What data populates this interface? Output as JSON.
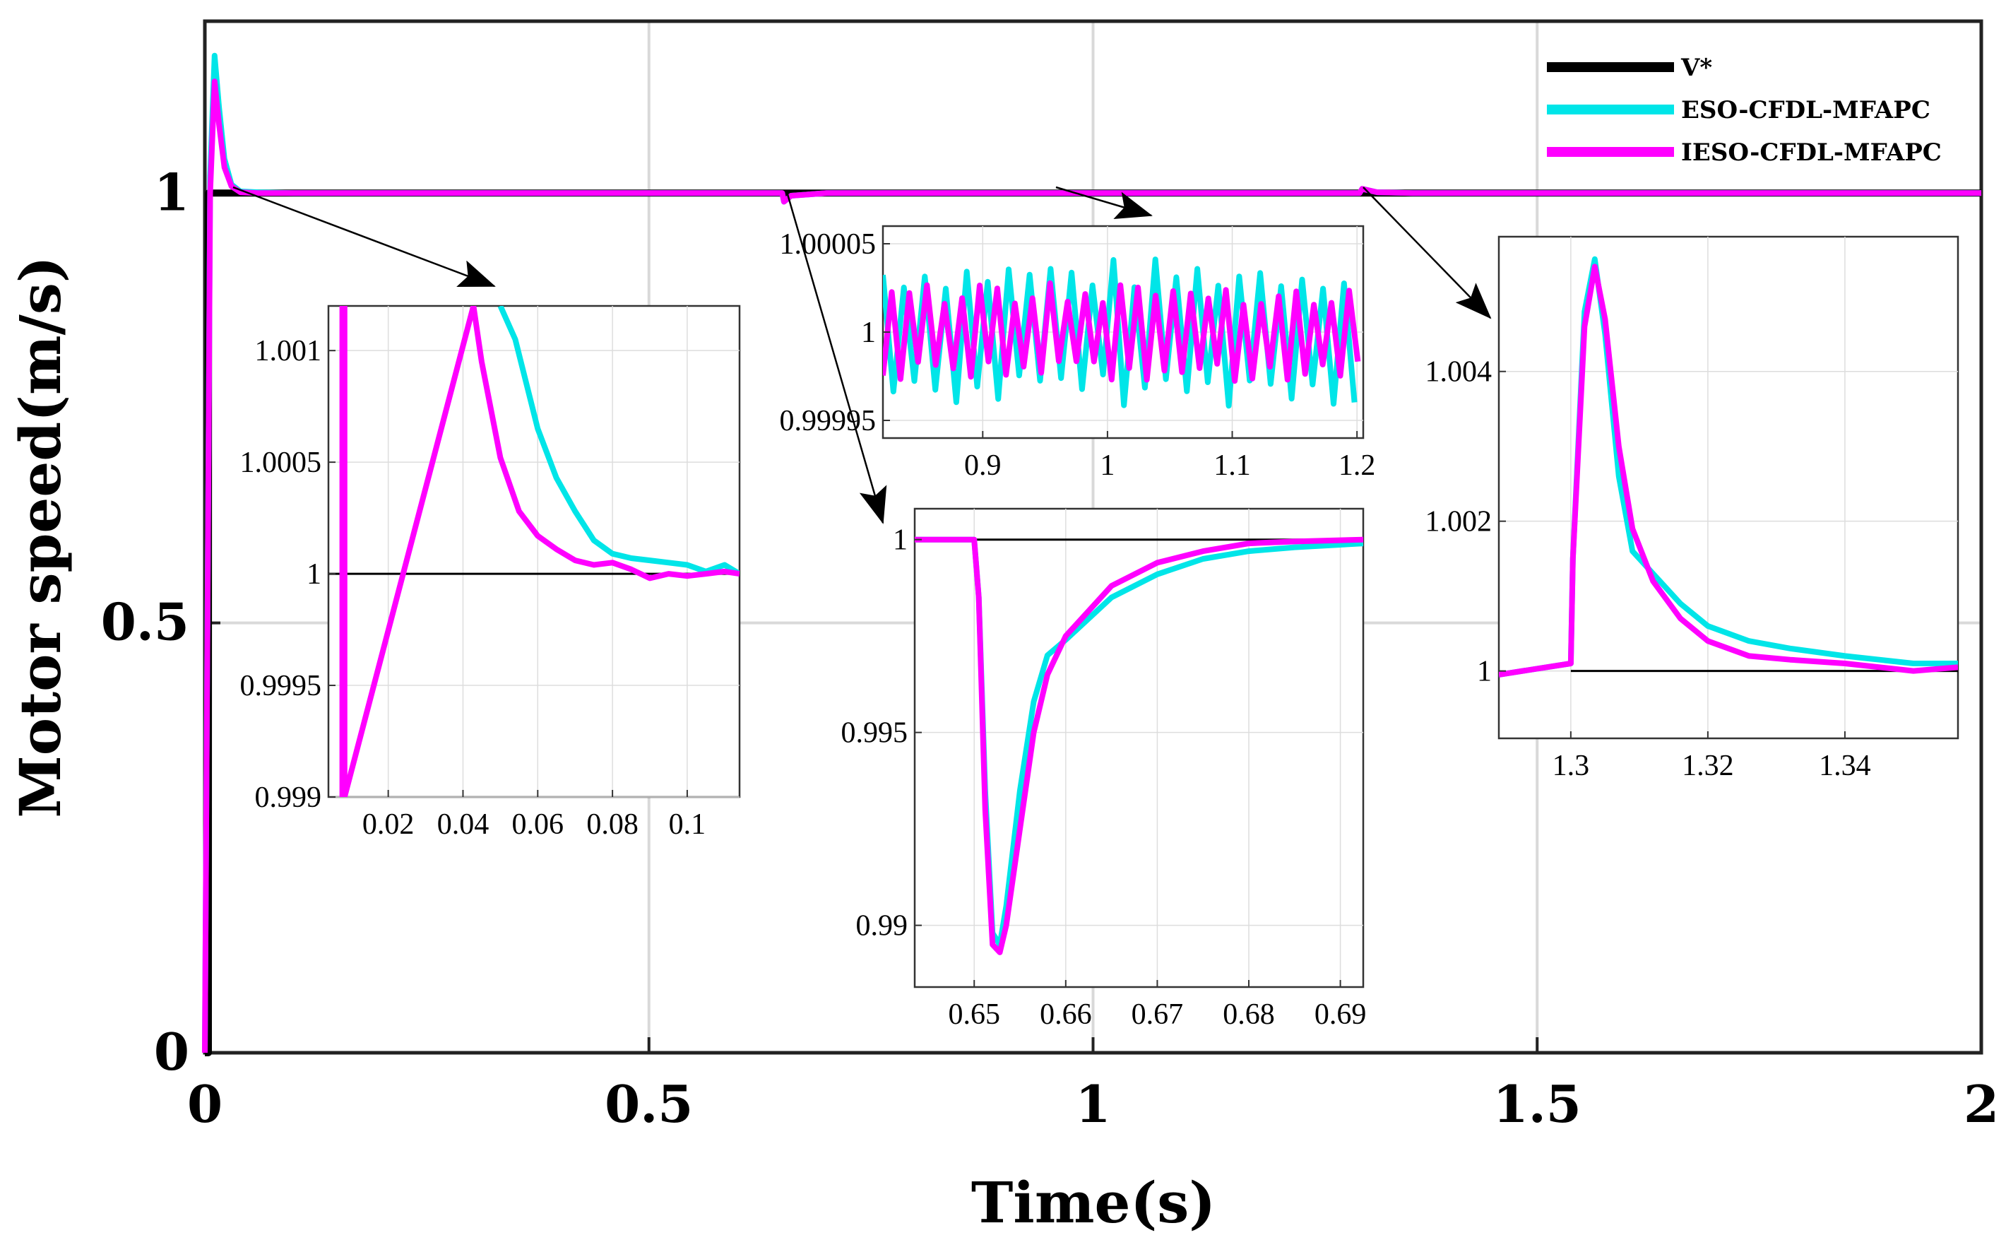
{
  "chart_data": {
    "type": "line",
    "title": "",
    "xlabel": "Time(s)",
    "ylabel": "Motor speed(m/s)",
    "xlim": [
      0,
      2
    ],
    "ylim": [
      0,
      1.2
    ],
    "x_ticks": [
      "0",
      "0.5",
      "1",
      "1.5",
      "2"
    ],
    "y_ticks": [
      "0",
      "0.5",
      "1"
    ],
    "grid": true,
    "legend_position": "top-right",
    "colors": {
      "ref": "#000000",
      "eso": "#00e5e8",
      "ieso": "#ff00ff",
      "grid": "#d9d9d9"
    },
    "series": [
      {
        "name": "V*",
        "x": [
          0,
          0.004,
          0.0041,
          2.0
        ],
        "y": [
          0,
          0,
          1,
          1
        ]
      },
      {
        "name": "ESO-CFDL-MFAPC",
        "x": [
          0,
          0.006,
          0.011,
          0.016,
          0.022,
          0.03,
          0.04,
          0.06,
          0.1,
          0.65,
          0.652,
          0.66,
          0.7,
          1.3,
          1.303,
          1.32,
          1.36,
          2.0
        ],
        "y": [
          0,
          1.02,
          1.16,
          1.1,
          1.04,
          1.01,
          1.002,
          1.001,
          1.0,
          1.0,
          0.99,
          0.997,
          1.0,
          1.0,
          1.005,
          1.001,
          1.0,
          1.0
        ]
      },
      {
        "name": "IESO-CFDL-MFAPC",
        "x": [
          0,
          0.006,
          0.011,
          0.016,
          0.022,
          0.03,
          0.04,
          0.06,
          0.1,
          0.65,
          0.652,
          0.66,
          0.7,
          1.3,
          1.303,
          1.32,
          1.36,
          2.0
        ],
        "y": [
          0,
          1.0,
          1.13,
          1.08,
          1.03,
          1.008,
          1.001,
          1.0,
          1.0,
          1.0,
          0.99,
          0.997,
          1.0,
          1.0,
          1.005,
          1.001,
          1.0,
          1.0
        ]
      }
    ],
    "insets": [
      {
        "name": "startup",
        "xlim": [
          0.004,
          0.114
        ],
        "ylim": [
          0.999,
          1.0012
        ],
        "x_ticks": [
          "0.02",
          "0.04",
          "0.06",
          "0.08",
          "0.1"
        ],
        "x_tick_values": [
          0.02,
          0.04,
          0.06,
          0.08,
          0.1
        ],
        "y_ticks": [
          "0.999",
          "0.9995",
          "1",
          "1.0005",
          "1.001"
        ],
        "y_tick_values": [
          0.999,
          0.9995,
          1.0,
          1.0005,
          1.001
        ],
        "ref": {
          "x": [
            0.004,
            0.114
          ],
          "y": [
            1.0,
            1.0
          ]
        },
        "eso": {
          "x": [
            0.05,
            0.054,
            0.06,
            0.065,
            0.07,
            0.075,
            0.08,
            0.085,
            0.09,
            0.095,
            0.1,
            0.105,
            0.11,
            0.114
          ],
          "y": [
            1.0012,
            1.00105,
            1.00065,
            1.00043,
            1.00028,
            1.00015,
            1.00009,
            1.00007,
            1.00006,
            1.00005,
            1.00004,
            1.00001,
            1.00004,
            1.0
          ]
        },
        "ieso": {
          "x": [
            0.0077,
            0.0077,
            0.0083,
            0.0083,
            0.0428,
            0.045,
            0.05,
            0.055,
            0.06,
            0.065,
            0.07,
            0.075,
            0.08,
            0.085,
            0.09,
            0.095,
            0.1,
            0.105,
            0.11,
            0.114
          ],
          "y": [
            0.999,
            1.0012,
            1.0012,
            0.999,
            1.0012,
            1.00095,
            1.00052,
            1.00028,
            1.00017,
            1.00011,
            1.00006,
            1.00004,
            1.00005,
            1.00002,
            0.99998,
            1.0,
            0.99999,
            1.0,
            1.00001,
            1.0
          ]
        }
      },
      {
        "name": "steady",
        "xlim": [
          0.82,
          1.205
        ],
        "ylim": [
          0.99994,
          1.00006
        ],
        "x_ticks": [
          "0.9",
          "1",
          "1.1",
          "1.2"
        ],
        "x_tick_values": [
          0.9,
          1.0,
          1.1,
          1.2
        ],
        "y_ticks": [
          "0.99995",
          "1",
          "1.00005"
        ],
        "y_tick_values": [
          0.99995,
          1.0,
          1.00005
        ],
        "eso": {
          "x0": 0.82,
          "x1": 1.205,
          "center": 1.0,
          "amplitude": 4.2e-05,
          "period": 0.0168
        },
        "ieso": {
          "x0": 0.82,
          "x1": 1.205,
          "center": 1.0,
          "amplitude": 2.8e-05,
          "period": 0.0141
        }
      },
      {
        "name": "load_drop",
        "xlim": [
          0.6435,
          0.6925
        ],
        "ylim": [
          0.9884,
          1.0008
        ],
        "x_ticks": [
          "0.65",
          "0.66",
          "0.67",
          "0.68",
          "0.69"
        ],
        "x_tick_values": [
          0.65,
          0.66,
          0.67,
          0.68,
          0.69
        ],
        "y_ticks": [
          "0.99",
          "0.995",
          "1"
        ],
        "y_tick_values": [
          0.99,
          0.995,
          1.0
        ],
        "ref": {
          "x": [
            0.6435,
            0.6925
          ],
          "y": [
            1.0,
            1.0
          ]
        },
        "eso": {
          "x": [
            0.6435,
            0.65,
            0.6505,
            0.6512,
            0.652,
            0.6528,
            0.6535,
            0.655,
            0.6565,
            0.658,
            0.66,
            0.665,
            0.67,
            0.675,
            0.68,
            0.685,
            0.6925
          ],
          "y": [
            1.0,
            1.0,
            0.9985,
            0.9935,
            0.9898,
            0.9895,
            0.9905,
            0.9935,
            0.9958,
            0.997,
            0.9974,
            0.9985,
            0.9991,
            0.9995,
            0.9997,
            0.9998,
            0.9999
          ]
        },
        "ieso": {
          "x": [
            0.6435,
            0.65,
            0.6505,
            0.6512,
            0.652,
            0.6528,
            0.6535,
            0.655,
            0.6565,
            0.658,
            0.66,
            0.665,
            0.67,
            0.675,
            0.68,
            0.685,
            0.6925
          ],
          "y": [
            1.0,
            1.0,
            0.9985,
            0.993,
            0.9895,
            0.9893,
            0.99,
            0.9925,
            0.995,
            0.9965,
            0.9975,
            0.9988,
            0.9994,
            0.9997,
            0.9999,
            0.99995,
            1.0
          ]
        }
      },
      {
        "name": "load_rise",
        "xlim": [
          1.2895,
          1.3565
        ],
        "ylim": [
          0.9991,
          1.0058
        ],
        "x_ticks": [
          "1.3",
          "1.32",
          "1.34"
        ],
        "x_tick_values": [
          1.3,
          1.32,
          1.34
        ],
        "y_ticks": [
          "1",
          "1.002",
          "1.004"
        ],
        "y_tick_values": [
          1.0,
          1.002,
          1.004
        ],
        "ref": {
          "x": [
            1.3,
            1.3565
          ],
          "y": [
            1.0,
            1.0
          ]
        },
        "eso": {
          "x": [
            1.2895,
            1.3,
            1.3003,
            1.302,
            1.3035,
            1.305,
            1.307,
            1.309,
            1.312,
            1.316,
            1.32,
            1.326,
            1.332,
            1.34,
            1.35,
            1.3565
          ],
          "y": [
            0.99995,
            1.0001,
            1.0015,
            1.0048,
            1.0055,
            1.0045,
            1.0026,
            1.0016,
            1.0013,
            1.0009,
            1.0006,
            1.0004,
            1.0003,
            1.0002,
            1.0001,
            1.0001
          ]
        },
        "ieso": {
          "x": [
            1.2895,
            1.3,
            1.3003,
            1.302,
            1.3035,
            1.305,
            1.307,
            1.309,
            1.312,
            1.316,
            1.32,
            1.326,
            1.332,
            1.34,
            1.35,
            1.3565
          ],
          "y": [
            0.99995,
            1.0001,
            1.0015,
            1.0046,
            1.0054,
            1.0047,
            1.003,
            1.0019,
            1.0012,
            1.0007,
            1.0004,
            1.0002,
            1.00015,
            1.0001,
            1.0,
            1.00005
          ]
        }
      }
    ]
  }
}
